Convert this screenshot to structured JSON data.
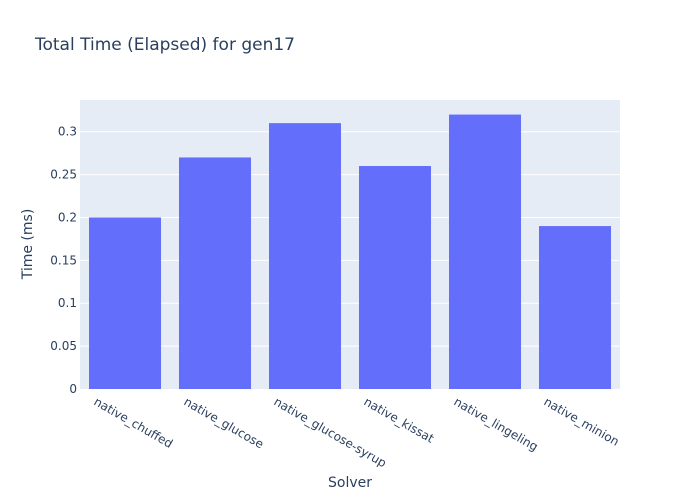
{
  "chart_data": {
    "type": "bar",
    "title": "Total Time (Elapsed) for gen17",
    "xlabel": "Solver",
    "ylabel": "Time (ms)",
    "categories": [
      "native_chuffed",
      "native_glucose",
      "native_glucose-syrup",
      "native_kissat",
      "native_lingeling",
      "native_minion"
    ],
    "values": [
      0.2,
      0.27,
      0.31,
      0.26,
      0.32,
      0.19
    ],
    "ylim": [
      0,
      0.337
    ],
    "yticks": [
      0,
      0.05,
      0.1,
      0.15,
      0.2,
      0.25,
      0.3
    ],
    "ytick_labels": [
      "0",
      "0.05",
      "0.1",
      "0.15",
      "0.2",
      "0.25",
      "0.3"
    ],
    "grid": true,
    "colors": {
      "bar": "#636efa",
      "plot_bg": "#e5ecf6",
      "grid": "#ffffff",
      "text": "#2a3f5f"
    }
  }
}
